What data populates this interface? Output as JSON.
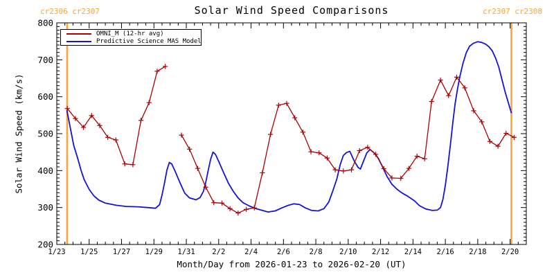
{
  "header": {
    "title": "Solar Wind Speed Comparisons",
    "cr_left": "cr2306 cr2307",
    "cr_right": "cr2307 cr2308"
  },
  "axes": {
    "x_label": "Month/Day from 2026-01-23 to 2026-02-20 (UT)",
    "y_label": "Solar Wind Speed (km/s)"
  },
  "legend": {
    "items": [
      {
        "label": "OMNI_M (12-hr avg)",
        "color": "#aa0000"
      },
      {
        "label": "Predictive Science MAS Model",
        "color": "#1212dd"
      }
    ]
  },
  "colors": {
    "background": "#ffffff",
    "axis": "#000000",
    "omni_red": "#aa0000",
    "mas_blue": "#1212dd",
    "carrington_orange": "#faa437"
  },
  "chart_data": {
    "type": "line",
    "title": "Solar Wind Speed Comparisons",
    "xlabel": "Month/Day from 2026-01-23 to 2026-02-20 (UT)",
    "ylabel": "Solar Wind Speed (km/s)",
    "x_unit": "days since 2026-01-23 00:00 UT",
    "xlim": [
      0,
      29
    ],
    "ylim": [
      200,
      800
    ],
    "grid": false,
    "legend_position": "upper-left-inside",
    "x_major_ticks": [
      0,
      2,
      4,
      6,
      8,
      10,
      12,
      14,
      16,
      18,
      20,
      22,
      24,
      26,
      28
    ],
    "x_tick_labels": [
      "1/23",
      "1/25",
      "1/27",
      "1/29",
      "1/31",
      "2/2",
      "2/4",
      "2/6",
      "2/8",
      "2/10",
      "2/12",
      "2/14",
      "2/16",
      "2/18",
      "2/20"
    ],
    "x_minor_step": 0.5,
    "y_major_step": 100,
    "y_minor_step": 10,
    "y_tick_labels": [
      "200",
      "300",
      "400",
      "500",
      "600",
      "700",
      "800"
    ],
    "carrington_boundaries": [
      {
        "t": 0.64,
        "between": "cr2306/cr2307"
      },
      {
        "t": 28.08,
        "between": "cr2307/cr2308"
      }
    ],
    "series": [
      {
        "name": "Predictive Science MAS Model",
        "color": "#1212dd",
        "marker": "none",
        "width": 1.8,
        "segments": [
          [
            [
              0.63,
              562
            ],
            [
              0.85,
              512
            ],
            [
              1.05,
              468
            ],
            [
              1.3,
              432
            ],
            [
              1.5,
              400
            ],
            [
              1.7,
              375
            ],
            [
              2.0,
              349
            ],
            [
              2.3,
              331
            ],
            [
              2.6,
              320
            ],
            [
              3.0,
              312
            ],
            [
              3.7,
              306
            ],
            [
              4.3,
              303
            ],
            [
              5.0,
              302
            ],
            [
              5.6,
              300
            ],
            [
              6.1,
              298
            ],
            [
              6.35,
              308
            ],
            [
              6.5,
              334
            ],
            [
              6.65,
              366
            ],
            [
              6.8,
              401
            ],
            [
              6.95,
              422
            ],
            [
              7.1,
              418
            ],
            [
              7.3,
              399
            ],
            [
              7.6,
              368
            ],
            [
              7.9,
              339
            ],
            [
              8.2,
              326
            ],
            [
              8.6,
              321
            ],
            [
              8.85,
              327
            ],
            [
              9.05,
              343
            ],
            [
              9.2,
              368
            ],
            [
              9.35,
              400
            ],
            [
              9.5,
              430
            ],
            [
              9.65,
              450
            ],
            [
              9.8,
              444
            ],
            [
              10.0,
              425
            ],
            [
              10.3,
              395
            ],
            [
              10.6,
              366
            ],
            [
              10.9,
              344
            ],
            [
              11.2,
              326
            ],
            [
              11.5,
              313
            ],
            [
              11.9,
              304
            ],
            [
              12.3,
              297
            ],
            [
              12.7,
              292
            ],
            [
              13.05,
              288
            ],
            [
              13.5,
              291
            ],
            [
              13.9,
              299
            ],
            [
              14.3,
              306
            ],
            [
              14.65,
              310
            ],
            [
              15.0,
              308
            ],
            [
              15.35,
              299
            ],
            [
              15.75,
              292
            ],
            [
              16.15,
              291
            ],
            [
              16.5,
              297
            ],
            [
              16.8,
              315
            ],
            [
              17.05,
              345
            ],
            [
              17.3,
              378
            ],
            [
              17.5,
              415
            ],
            [
              17.7,
              441
            ],
            [
              17.9,
              449
            ],
            [
              18.1,
              452
            ],
            [
              18.35,
              428
            ],
            [
              18.6,
              409
            ],
            [
              18.75,
              404
            ],
            [
              18.95,
              426
            ],
            [
              19.15,
              448
            ],
            [
              19.35,
              457
            ],
            [
              19.6,
              448
            ],
            [
              19.85,
              434
            ],
            [
              20.1,
              412
            ],
            [
              20.4,
              384
            ],
            [
              20.7,
              363
            ],
            [
              21.0,
              350
            ],
            [
              21.3,
              340
            ],
            [
              21.7,
              330
            ],
            [
              22.1,
              318
            ],
            [
              22.4,
              305
            ],
            [
              22.8,
              296
            ],
            [
              23.2,
              292
            ],
            [
              23.5,
              293
            ],
            [
              23.7,
              300
            ],
            [
              23.85,
              322
            ],
            [
              24.0,
              360
            ],
            [
              24.15,
              410
            ],
            [
              24.3,
              465
            ],
            [
              24.45,
              525
            ],
            [
              24.6,
              580
            ],
            [
              24.75,
              620
            ],
            [
              24.9,
              655
            ],
            [
              25.1,
              692
            ],
            [
              25.3,
              720
            ],
            [
              25.5,
              737
            ],
            [
              25.75,
              745
            ],
            [
              26.0,
              749
            ],
            [
              26.25,
              747
            ],
            [
              26.5,
              742
            ],
            [
              26.7,
              735
            ],
            [
              26.9,
              724
            ],
            [
              27.1,
              705
            ],
            [
              27.3,
              680
            ],
            [
              27.5,
              646
            ],
            [
              27.7,
              612
            ],
            [
              27.9,
              582
            ],
            [
              28.07,
              557
            ]
          ]
        ]
      },
      {
        "name": "OMNI_M (12-hr avg)",
        "color": "#aa0000",
        "marker": "plus",
        "width": 1.3,
        "segments": [
          [
            [
              0.65,
              568
            ],
            [
              1.15,
              541
            ],
            [
              1.65,
              517
            ],
            [
              2.15,
              549
            ],
            [
              2.65,
              522
            ],
            [
              3.15,
              490
            ],
            [
              3.65,
              483
            ],
            [
              4.2,
              418
            ],
            [
              4.7,
              416
            ],
            [
              5.2,
              536
            ],
            [
              5.7,
              584
            ],
            [
              6.2,
              669
            ],
            [
              6.7,
              682
            ]
          ],
          [
            [
              7.7,
              496
            ],
            [
              8.2,
              458
            ],
            [
              8.7,
              406
            ],
            [
              9.2,
              355
            ],
            [
              9.7,
              313
            ],
            [
              10.2,
              312
            ],
            [
              10.7,
              297
            ],
            [
              11.2,
              285
            ],
            [
              11.7,
              295
            ],
            [
              12.2,
              299
            ],
            [
              12.7,
              394
            ],
            [
              13.2,
              498
            ],
            [
              13.7,
              577
            ],
            [
              14.2,
              582
            ],
            [
              14.7,
              543
            ],
            [
              15.2,
              504
            ],
            [
              15.7,
              451
            ],
            [
              16.2,
              448
            ],
            [
              16.7,
              434
            ],
            [
              17.2,
              402
            ],
            [
              17.7,
              399
            ],
            [
              18.2,
              402
            ],
            [
              18.7,
              454
            ],
            [
              19.2,
              463
            ],
            [
              19.7,
              444
            ],
            [
              20.2,
              405
            ],
            [
              20.7,
              380
            ],
            [
              21.25,
              379
            ],
            [
              21.75,
              406
            ],
            [
              22.25,
              439
            ],
            [
              22.72,
              432
            ],
            [
              23.15,
              587
            ],
            [
              23.7,
              645
            ],
            [
              24.2,
              603
            ],
            [
              24.7,
              653
            ],
            [
              25.2,
              624
            ],
            [
              25.75,
              562
            ],
            [
              26.25,
              532
            ],
            [
              26.75,
              479
            ],
            [
              27.25,
              466
            ],
            [
              27.75,
              501
            ],
            [
              28.25,
              490
            ]
          ]
        ]
      }
    ]
  }
}
